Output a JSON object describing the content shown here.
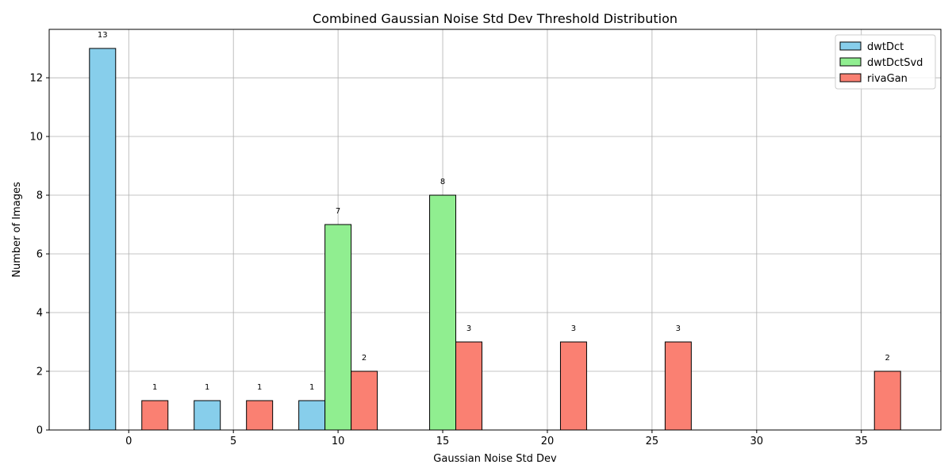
{
  "chart_data": {
    "type": "bar",
    "title": "Combined Gaussian Noise Std Dev Threshold Distribution",
    "xlabel": "Gaussian Noise Std Dev",
    "ylabel": "Number of Images",
    "xlim": [
      -3.8,
      38.8
    ],
    "ylim": [
      0,
      13.65
    ],
    "x_ticks": [
      0,
      5,
      10,
      15,
      20,
      25,
      30,
      35
    ],
    "y_ticks": [
      0,
      2,
      4,
      6,
      8,
      10,
      12
    ],
    "grid": true,
    "legend_position": "top-right",
    "bar_width": 1.25,
    "categories": [
      0,
      5,
      10,
      15,
      20,
      25,
      30,
      35
    ],
    "series": [
      {
        "name": "dwtDct",
        "color": "#87CEEB",
        "offset": -1.25,
        "values": [
          13,
          1,
          1,
          0,
          0,
          0,
          0,
          0
        ]
      },
      {
        "name": "dwtDctSvd",
        "color": "#90EE90",
        "offset": 0,
        "values": [
          0,
          0,
          7,
          8,
          0,
          0,
          0,
          0
        ]
      },
      {
        "name": "rivaGan",
        "color": "#FA8072",
        "offset": 1.25,
        "values": [
          1,
          1,
          2,
          3,
          3,
          3,
          0,
          2
        ]
      }
    ]
  }
}
